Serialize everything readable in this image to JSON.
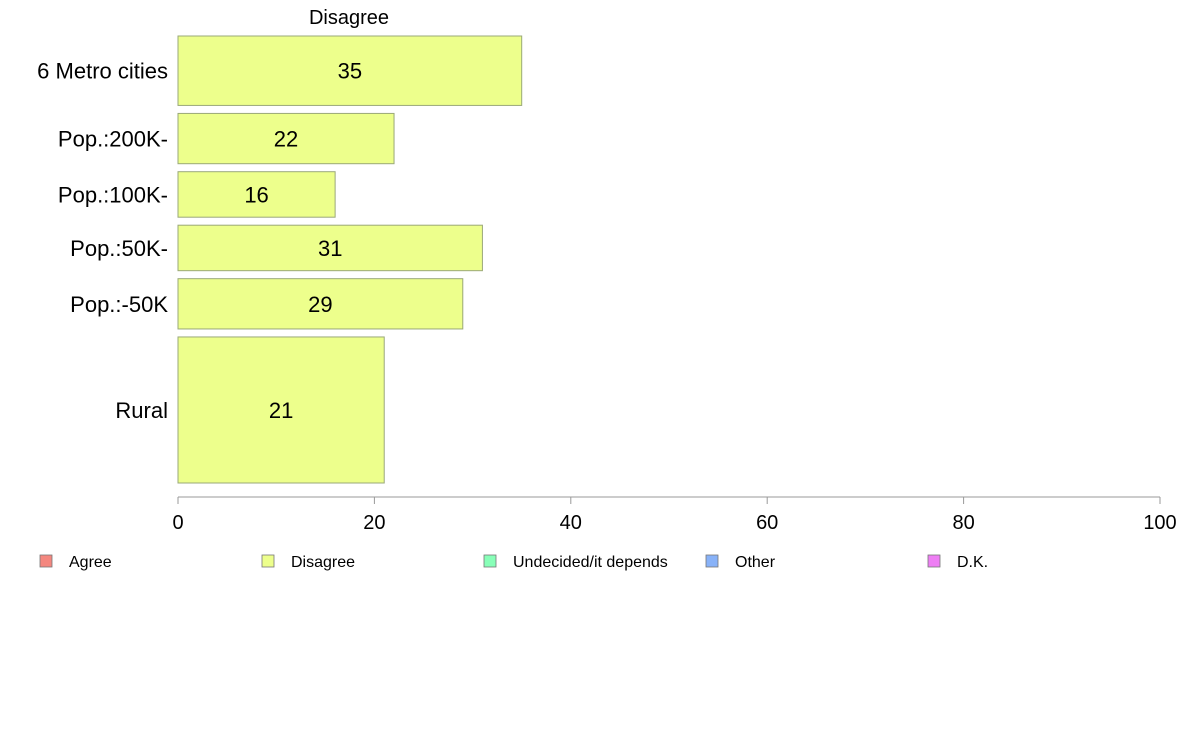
{
  "chart_data": {
    "type": "bar",
    "orientation": "horizontal",
    "title": "Disagree",
    "categories": [
      "6 Metro cities",
      "Pop.:200K-",
      "Pop.:100K-",
      "Pop.:50K-",
      "Pop.:-50K",
      "Rural"
    ],
    "values": [
      35,
      22,
      16,
      31,
      29,
      21
    ],
    "relative_widths": [
      1.45,
      1.05,
      0.95,
      0.95,
      1.05,
      3.05
    ],
    "xlim": [
      0,
      100
    ],
    "xticks": [
      0,
      20,
      40,
      60,
      80,
      100
    ],
    "xlabel": "",
    "ylabel": "",
    "grid": false,
    "bar_color": "#EDFF8C",
    "bar_edge_color": "#9AA878",
    "axis_color": "#999999",
    "legend": {
      "position": "bottom",
      "items": [
        {
          "label": "Agree",
          "color": "#F4877F"
        },
        {
          "label": "Disagree",
          "color": "#EDFF8C"
        },
        {
          "label": "Undecided/it depends",
          "color": "#88FFB8"
        },
        {
          "label": "Other",
          "color": "#88B2F8"
        },
        {
          "label": "D.K.",
          "color": "#EE7EF4"
        }
      ]
    }
  }
}
